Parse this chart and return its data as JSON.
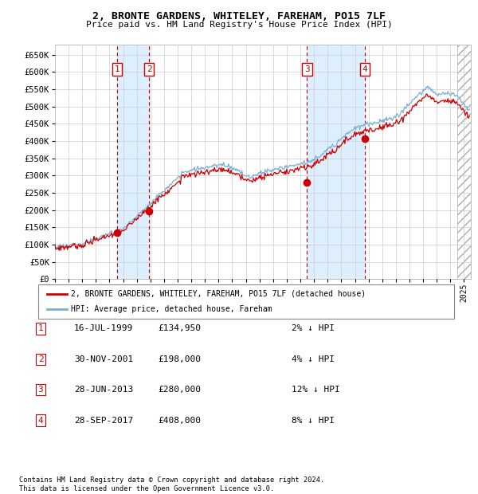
{
  "title1": "2, BRONTE GARDENS, WHITELEY, FAREHAM, PO15 7LF",
  "title2": "Price paid vs. HM Land Registry's House Price Index (HPI)",
  "xlim_start": 1995.0,
  "xlim_end": 2025.5,
  "ylim_min": 0,
  "ylim_max": 680000,
  "yticks": [
    0,
    50000,
    100000,
    150000,
    200000,
    250000,
    300000,
    350000,
    400000,
    450000,
    500000,
    550000,
    600000,
    650000
  ],
  "ytick_labels": [
    "£0",
    "£50K",
    "£100K",
    "£150K",
    "£200K",
    "£250K",
    "£300K",
    "£350K",
    "£400K",
    "£450K",
    "£500K",
    "£550K",
    "£600K",
    "£650K"
  ],
  "sale_dates_num": [
    1999.54,
    2001.91,
    2013.49,
    2017.74
  ],
  "sale_prices": [
    134950,
    198000,
    280000,
    408000
  ],
  "sale_labels": [
    "1",
    "2",
    "3",
    "4"
  ],
  "sale_dates_str": [
    "16-JUL-1999",
    "30-NOV-2001",
    "28-JUN-2013",
    "28-SEP-2017"
  ],
  "sale_pct": [
    "2%",
    "4%",
    "12%",
    "8%"
  ],
  "hpi_color": "#7aaed4",
  "price_color": "#cc0000",
  "sale_dot_color": "#cc0000",
  "vline_color": "#cc0000",
  "shade_color": "#ddeeff",
  "box_color": "#cc0000",
  "legend_label_price": "2, BRONTE GARDENS, WHITELEY, FAREHAM, PO15 7LF (detached house)",
  "legend_label_hpi": "HPI: Average price, detached house, Fareham",
  "footnote1": "Contains HM Land Registry data © Crown copyright and database right 2024.",
  "footnote2": "This data is licensed under the Open Government Licence v3.0.",
  "hatch_region_start": 2024.5,
  "hatch_region_end": 2025.5
}
